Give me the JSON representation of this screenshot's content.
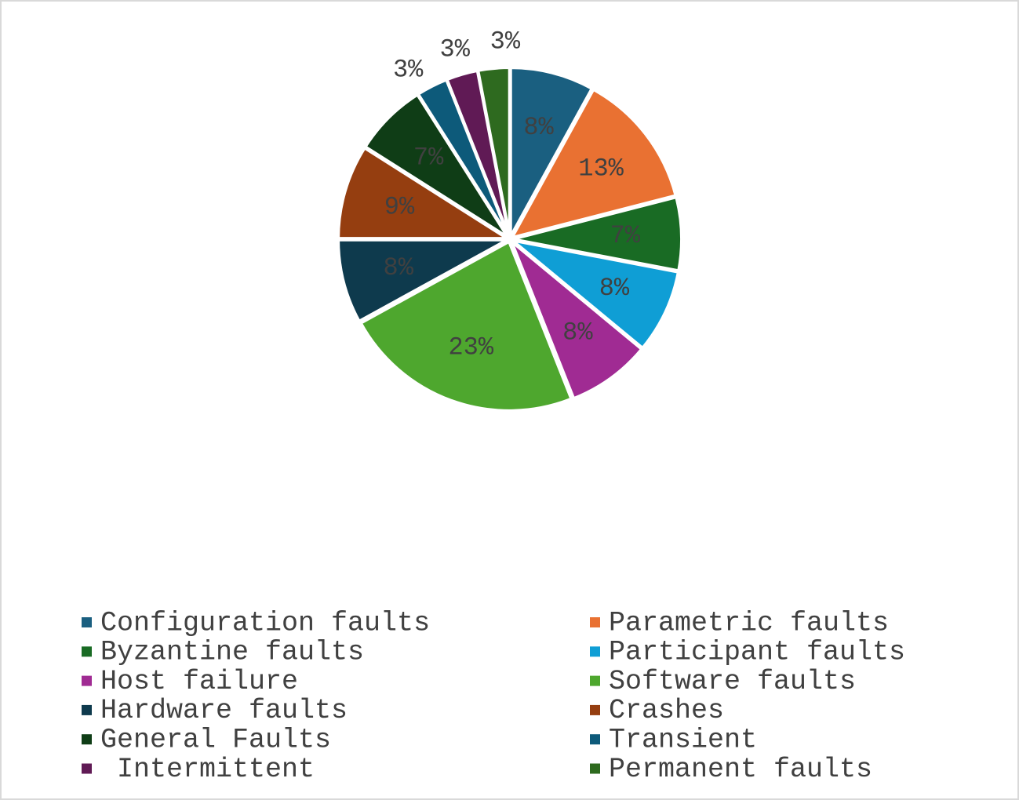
{
  "chart_data": {
    "type": "pie",
    "categories": [
      "Configuration faults",
      "Parametric faults",
      "Byzantine faults",
      "Participant faults",
      "Host failure",
      "Software faults",
      "Hardware faults",
      "Crashes",
      "General Faults",
      "Transient",
      " Intermittent",
      "Permanent faults"
    ],
    "values": [
      8,
      13,
      7,
      8,
      8,
      23,
      8,
      9,
      7,
      3,
      3,
      3
    ],
    "value_labels": [
      "8%",
      "13%",
      "7%",
      "8%",
      "8%",
      "23%",
      "8%",
      "9%",
      "7%",
      "3%",
      "3%",
      "3%"
    ],
    "colors": [
      "#1a5f80",
      "#e97132",
      "#196b24",
      "#0f9ed5",
      "#a02b93",
      "#4ea72e",
      "#0e3a4d",
      "#953e10",
      "#0f3d16",
      "#0d5a7a",
      "#601a55",
      "#2e6a1f"
    ],
    "legend": "bottom"
  }
}
